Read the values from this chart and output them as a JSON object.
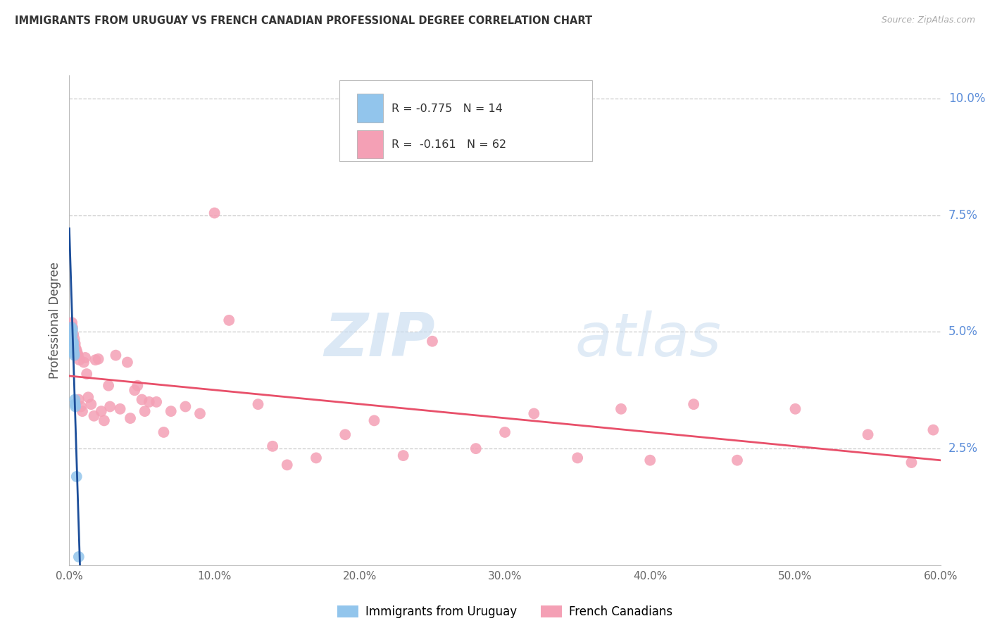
{
  "title": "IMMIGRANTS FROM URUGUAY VS FRENCH CANADIAN PROFESSIONAL DEGREE CORRELATION CHART",
  "source": "Source: ZipAtlas.com",
  "ylabel_label": "Professional Degree",
  "legend_r1": "-0.775",
  "legend_n1": "14",
  "legend_r2": "-0.161",
  "legend_n2": "62",
  "uruguay_color": "#92C5EC",
  "french_color": "#F4A0B5",
  "regression_uruguay_color": "#1C4E9A",
  "regression_french_color": "#E8506A",
  "uruguay_x": [
    0.15,
    0.18,
    0.2,
    0.22,
    0.25,
    0.28,
    0.3,
    0.32,
    0.35,
    0.38,
    0.4,
    0.42,
    0.5,
    0.65
  ],
  "uruguay_y": [
    5.1,
    4.85,
    4.95,
    5.05,
    4.8,
    4.75,
    4.65,
    4.55,
    4.5,
    3.55,
    3.45,
    3.4,
    1.9,
    0.18
  ],
  "french_x": [
    0.12,
    0.18,
    0.22,
    0.28,
    0.35,
    0.4,
    0.45,
    0.5,
    0.55,
    0.6,
    0.65,
    0.7,
    0.8,
    0.9,
    1.0,
    1.1,
    1.2,
    1.3,
    1.5,
    1.7,
    1.8,
    2.0,
    2.2,
    2.4,
    2.7,
    2.8,
    3.2,
    3.5,
    4.0,
    4.2,
    4.5,
    4.7,
    5.0,
    5.2,
    5.5,
    6.0,
    6.5,
    7.0,
    8.0,
    9.0,
    10.0,
    11.0,
    13.0,
    14.0,
    15.0,
    17.0,
    19.0,
    21.0,
    23.0,
    25.0,
    28.0,
    30.0,
    32.0,
    35.0,
    38.0,
    40.0,
    43.0,
    46.0,
    50.0,
    55.0,
    58.0,
    59.5
  ],
  "french_y": [
    5.05,
    5.2,
    5.1,
    4.95,
    4.85,
    4.75,
    4.65,
    4.6,
    4.55,
    4.5,
    3.55,
    4.4,
    3.4,
    3.3,
    4.35,
    4.45,
    4.1,
    3.6,
    3.45,
    3.2,
    4.4,
    4.42,
    3.3,
    3.1,
    3.85,
    3.4,
    4.5,
    3.35,
    4.35,
    3.15,
    3.75,
    3.85,
    3.55,
    3.3,
    3.5,
    3.5,
    2.85,
    3.3,
    3.4,
    3.25,
    7.55,
    5.25,
    3.45,
    2.55,
    2.15,
    2.3,
    2.8,
    3.1,
    2.35,
    4.8,
    2.5,
    2.85,
    3.25,
    2.3,
    3.35,
    2.25,
    3.45,
    2.25,
    3.35,
    2.8,
    2.2,
    2.9
  ],
  "watermark_zip": "ZIP",
  "watermark_atlas": "atlas",
  "background_color": "#FFFFFF",
  "grid_color": "#CCCCCC",
  "tick_color_right": "#5B8DD9",
  "tick_color_bottom": "#666666",
  "xlim": [
    0,
    60
  ],
  "ylim": [
    0,
    10.5
  ],
  "yticks": [
    2.5,
    5.0,
    7.5,
    10.0
  ],
  "xticks": [
    0,
    10,
    20,
    30,
    40,
    50,
    60
  ]
}
